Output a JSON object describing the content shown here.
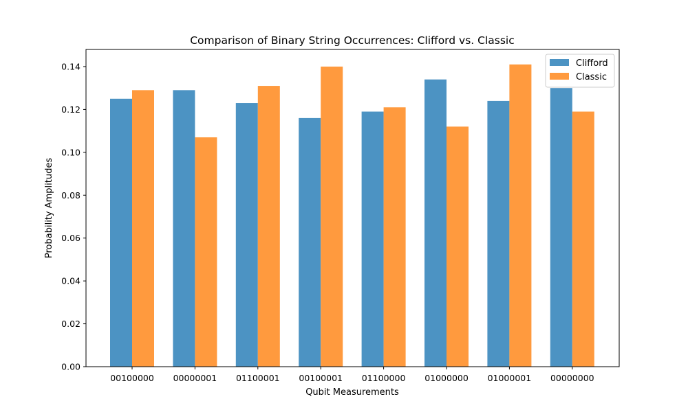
{
  "chart_data": {
    "type": "bar",
    "title": "Comparison of Binary String Occurrences: Clifford vs. Classic",
    "xlabel": "Qubit Measurements",
    "ylabel": "Probability Amplitudes",
    "categories": [
      "00100000",
      "00000001",
      "01100001",
      "00100001",
      "01100000",
      "01000000",
      "01000001",
      "00000000"
    ],
    "series": [
      {
        "name": "Clifford",
        "color": "#4c93c3",
        "values": [
          0.125,
          0.129,
          0.123,
          0.116,
          0.119,
          0.134,
          0.124,
          0.13
        ]
      },
      {
        "name": "Classic",
        "color": "#ff9a3e",
        "values": [
          0.129,
          0.107,
          0.131,
          0.14,
          0.121,
          0.112,
          0.141,
          0.119
        ]
      }
    ],
    "ylim": [
      0,
      0.148
    ],
    "yticks": [
      "0.00",
      "0.02",
      "0.04",
      "0.06",
      "0.08",
      "0.10",
      "0.12",
      "0.14"
    ],
    "ytick_values": [
      0,
      0.02,
      0.04,
      0.06,
      0.08,
      0.1,
      0.12,
      0.14
    ],
    "grid": false,
    "legend_position": "top-right"
  }
}
